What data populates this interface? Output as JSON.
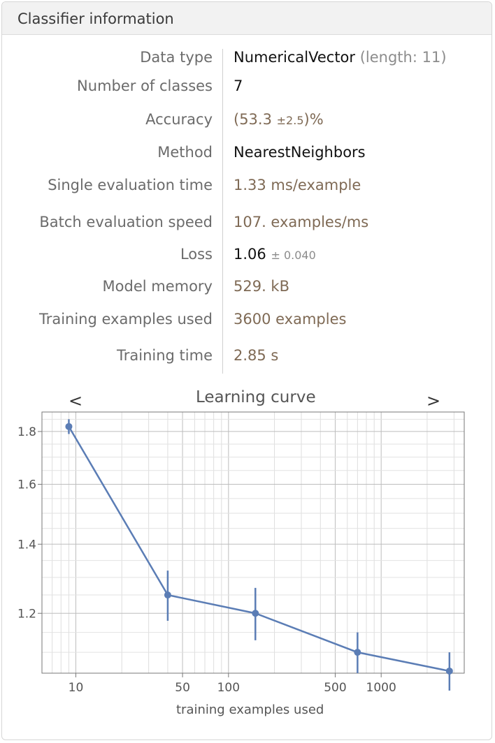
{
  "header": {
    "title": "Classifier information"
  },
  "info_rows": [
    {
      "label": "Data type",
      "value": "NumericalVector",
      "extra": "(length: 11)"
    },
    {
      "label": "Number of classes",
      "value": "7"
    },
    {
      "label": "Accuracy",
      "open": "(53.3",
      "pm": "±2.5",
      "close": ")%"
    },
    {
      "label": "Method",
      "value": "NearestNeighbors"
    },
    {
      "label": "Single evaluation time",
      "value": "1.33 ms/example"
    },
    {
      "label": "Batch evaluation speed",
      "value": "107. examples/ms"
    },
    {
      "label": "Loss",
      "value": "1.06",
      "pm": "± 0.040"
    },
    {
      "label": "Model memory",
      "value": "529. kB"
    },
    {
      "label": "Training examples used",
      "value": "3600 examples"
    },
    {
      "label": "Training time",
      "value": "2.85 s"
    }
  ],
  "nav": {
    "prev": "<",
    "next": ">"
  },
  "chart_data": {
    "type": "line",
    "title": "Learning curve",
    "xlabel": "training examples used",
    "ylabel": "",
    "xscale": "log",
    "yscale": "log",
    "xlim": [
      6,
      3500
    ],
    "ylim": [
      1.05,
      1.88
    ],
    "x_ticks": [
      10,
      50,
      100,
      500,
      1000
    ],
    "x_tick_labels": [
      "10",
      "50",
      "100",
      "500",
      "1000"
    ],
    "y_ticks": [
      1.2,
      1.4,
      1.6,
      1.8
    ],
    "y_tick_labels": [
      "1.2",
      "1.4",
      "1.6",
      "1.8"
    ],
    "grid": true,
    "series": [
      {
        "x": [
          9,
          40,
          150,
          700,
          2800
        ],
        "y": [
          1.82,
          1.25,
          1.2,
          1.1,
          1.055
        ],
        "err": [
          0.03,
          0.07,
          0.07,
          0.05,
          0.045
        ]
      }
    ],
    "color": "#5b7db5"
  }
}
